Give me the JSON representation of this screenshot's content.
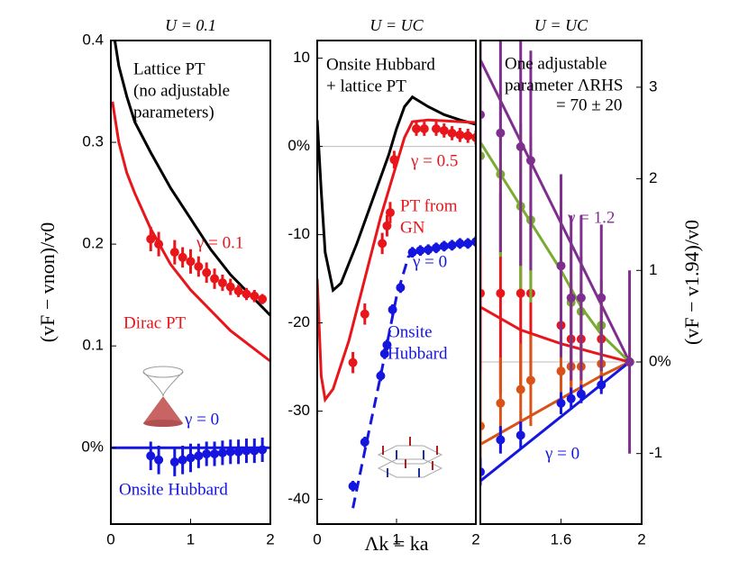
{
  "figure": {
    "xlabel": "Λk = ka"
  },
  "chart_data": [
    {
      "type": "line",
      "title": "U = 0.1",
      "ylabel": "(vF − vnon)/v0",
      "yaxis_side": "left",
      "zero_line": false,
      "xlim": [
        0,
        2
      ],
      "xticks": [
        0,
        1,
        2
      ],
      "ylim": [
        -0.075,
        0.4
      ],
      "yticks": [
        {
          "value": 0,
          "label": "0%"
        },
        0.1,
        0.2,
        0.3,
        0.4
      ],
      "series": [
        {
          "style": "line",
          "color": "#000000",
          "x": [
            0.05,
            0.1,
            0.2,
            0.3,
            0.5,
            0.75,
            1.0,
            1.25,
            1.5,
            1.75,
            2.0
          ],
          "values": [
            0.4,
            0.375,
            0.345,
            0.32,
            0.29,
            0.255,
            0.225,
            0.195,
            0.17,
            0.15,
            0.13
          ]
        },
        {
          "style": "line",
          "color": "#e8151b",
          "x": [
            0.02,
            0.1,
            0.2,
            0.3,
            0.5,
            0.75,
            1.0,
            1.25,
            1.5,
            1.75,
            2.0
          ],
          "values": [
            0.34,
            0.3,
            0.27,
            0.25,
            0.215,
            0.18,
            0.155,
            0.135,
            0.115,
            0.1,
            0.085
          ]
        },
        {
          "style": "line",
          "color": "#1515e0",
          "x": [
            0,
            2
          ],
          "values": [
            0,
            0
          ]
        },
        {
          "style": "points",
          "color": "#e8151b",
          "x": [
            0.5,
            0.6,
            0.8,
            0.9,
            1.0,
            1.1,
            1.2,
            1.3,
            1.4,
            1.5,
            1.6,
            1.7,
            1.8,
            1.9
          ],
          "values": [
            0.205,
            0.2,
            0.192,
            0.187,
            0.183,
            0.178,
            0.172,
            0.166,
            0.162,
            0.158,
            0.154,
            0.151,
            0.149,
            0.146
          ],
          "errors": [
            0.012,
            0.012,
            0.012,
            0.01,
            0.012,
            0.01,
            0.01,
            0.01,
            0.008,
            0.008,
            0.006,
            0.006,
            0.006,
            0.005
          ]
        },
        {
          "style": "points",
          "color": "#1515e0",
          "x": [
            0.5,
            0.6,
            0.8,
            0.9,
            1.0,
            1.1,
            1.2,
            1.3,
            1.4,
            1.5,
            1.6,
            1.7,
            1.8,
            1.9
          ],
          "values": [
            -0.008,
            -0.012,
            -0.014,
            -0.012,
            -0.01,
            -0.008,
            -0.006,
            -0.006,
            -0.005,
            -0.004,
            -0.004,
            -0.003,
            -0.003,
            -0.002
          ],
          "errors": [
            0.014,
            0.014,
            0.014,
            0.014,
            0.014,
            0.012,
            0.012,
            0.012,
            0.012,
            0.012,
            0.012,
            0.012,
            0.012,
            0.012
          ]
        }
      ],
      "annotations": [
        {
          "text": "Lattice PT",
          "color": "#000000"
        },
        {
          "text": "(no adjustable",
          "color": "#000000"
        },
        {
          "text": "parameters)",
          "color": "#000000"
        },
        {
          "text": "γ = 0.1",
          "color": "#e8151b"
        },
        {
          "text": "Dirac PT",
          "color": "#e8151b"
        },
        {
          "text": "γ = 0",
          "color": "#1515e0"
        },
        {
          "text": "Onsite Hubbard",
          "color": "#1515e0"
        }
      ]
    },
    {
      "type": "line",
      "title": "U = UC",
      "yaxis_side": "left",
      "zero_line": true,
      "xlim": [
        0,
        2
      ],
      "xticks": [
        0,
        1,
        2
      ],
      "ylim": [
        -42.8,
        12
      ],
      "yticks": [
        -40,
        -30,
        -20,
        -10,
        {
          "value": 0,
          "label": "0%"
        },
        10
      ],
      "series": [
        {
          "style": "line",
          "color": "#000000",
          "x": [
            0.0,
            0.05,
            0.1,
            0.2,
            0.3,
            0.5,
            0.7,
            0.9,
            1.0,
            1.1,
            1.2,
            1.4,
            1.6,
            1.8,
            2.0
          ],
          "values": [
            3,
            -5,
            -12,
            -16.3,
            -15.5,
            -11,
            -6,
            -1,
            2,
            4.5,
            5.6,
            4.5,
            3.6,
            3,
            2.5
          ]
        },
        {
          "style": "line",
          "color": "#e8151b",
          "x": [
            0.0,
            0.05,
            0.1,
            0.2,
            0.4,
            0.6,
            0.8,
            1.0,
            1.1,
            1.2,
            1.4,
            1.6,
            2.0
          ],
          "values": [
            -15,
            -26,
            -28.7,
            -27.5,
            -22,
            -15,
            -8,
            -2,
            1,
            2.8,
            3,
            2.9,
            2.7
          ]
        },
        {
          "style": "dashed",
          "color": "#1515e0",
          "x": [
            0.45,
            0.6,
            0.8,
            1.0,
            1.15,
            1.3,
            2.0
          ],
          "values": [
            -41,
            -34.5,
            -26,
            -17,
            -12.5,
            -11.8,
            -11
          ]
        },
        {
          "style": "points",
          "color": "#e8151b",
          "x": [
            0.45,
            0.6,
            0.82,
            0.88,
            0.92,
            0.97,
            1.25,
            1.35,
            1.5,
            1.6,
            1.7,
            1.8,
            1.9,
            2.0
          ],
          "values": [
            -24.5,
            -19,
            -11,
            -9,
            -7.5,
            -1.5,
            2,
            2,
            2,
            1.8,
            1.5,
            1.3,
            1.2,
            1
          ],
          "errors": [
            1.2,
            1.2,
            1.2,
            1.2,
            1.2,
            1,
            0.8,
            0.8,
            0.8,
            0.8,
            0.8,
            0.8,
            0.8,
            0.8
          ]
        },
        {
          "style": "points",
          "color": "#1515e0",
          "x": [
            0.45,
            0.6,
            0.8,
            0.85,
            0.88,
            0.95,
            1.05,
            1.2,
            1.3,
            1.4,
            1.5,
            1.6,
            1.7,
            1.8,
            1.9,
            2.0
          ],
          "values": [
            -38.5,
            -33.5,
            -26,
            -23.5,
            -22.5,
            -18.5,
            -16,
            -12,
            -11.8,
            -11.7,
            -11.5,
            -11.3,
            -11.2,
            -11,
            -11,
            -10.8
          ],
          "errors": [
            0.6,
            0.6,
            0.6,
            0.6,
            0.6,
            0.6,
            0.6,
            0.6,
            0.6,
            0.6,
            0.6,
            0.6,
            0.6,
            0.6,
            0.6,
            0.6
          ]
        }
      ],
      "annotations": [
        {
          "text": "Onsite Hubbard",
          "color": "#000000"
        },
        {
          "text": "+ lattice PT",
          "color": "#000000"
        },
        {
          "text": "γ = 0.5",
          "color": "#e8151b"
        },
        {
          "text": "PT from",
          "color": "#e8151b"
        },
        {
          "text": "GN",
          "color": "#e8151b"
        },
        {
          "text": "γ = 0",
          "color": "#1515e0"
        },
        {
          "text": "Onsite",
          "color": "#1515e0"
        },
        {
          "text": "Hubbard",
          "color": "#1515e0"
        }
      ]
    },
    {
      "type": "line",
      "title": "U = UC",
      "ylabel": "(vF − v1.94)/v0",
      "yaxis_side": "right",
      "zero_line": true,
      "xlim": [
        1.2,
        2.0
      ],
      "xticks": [
        1.6,
        2
      ],
      "ylim": [
        -1.77,
        3.51
      ],
      "yticks": [
        -1,
        {
          "value": 0,
          "label": "0%"
        },
        1,
        2,
        3
      ],
      "series": [
        {
          "style": "line",
          "color": "#7e2f8e",
          "x": [
            1.2,
            1.94
          ],
          "values": [
            3.3,
            0
          ]
        },
        {
          "style": "line",
          "color": "#77ac30",
          "x": [
            1.2,
            1.3,
            1.4,
            1.5,
            1.6,
            1.7,
            1.8,
            1.94
          ],
          "values": [
            2.4,
            2.05,
            1.7,
            1.35,
            1.0,
            0.6,
            0.3,
            0
          ]
        },
        {
          "style": "line",
          "color": "#e8151b",
          "x": [
            1.2,
            1.4,
            1.6,
            1.8,
            1.94
          ],
          "values": [
            0.6,
            0.35,
            0.2,
            0.08,
            0
          ]
        },
        {
          "style": "line",
          "color": "#d95319",
          "x": [
            1.2,
            1.4,
            1.6,
            1.8,
            1.94
          ],
          "values": [
            -0.9,
            -0.65,
            -0.4,
            -0.15,
            0
          ]
        },
        {
          "style": "line",
          "color": "#1515e0",
          "x": [
            1.2,
            1.94
          ],
          "values": [
            -1.3,
            0
          ]
        },
        {
          "style": "points",
          "color": "#e8151b",
          "x": [
            1.2,
            1.3,
            1.4,
            1.45,
            1.6,
            1.65,
            1.7,
            1.8,
            1.94
          ],
          "values": [
            0.75,
            0.75,
            0.75,
            0.75,
            0.4,
            0.25,
            0.25,
            0.25,
            0
          ],
          "errors": [
            1.2,
            1.1,
            1.0,
            1.0,
            0.7,
            0.6,
            0.6,
            0.5,
            0
          ]
        },
        {
          "style": "points",
          "color": "#d95319",
          "x": [
            1.2,
            1.3,
            1.4,
            1.45,
            1.6,
            1.65,
            1.7,
            1.8,
            1.94
          ],
          "values": [
            -0.7,
            -0.45,
            -0.3,
            -0.2,
            -0.1,
            -0.05,
            -0.05,
            -0.02,
            0
          ],
          "errors": [
            0.6,
            0.5,
            0.5,
            0.5,
            0.4,
            0.3,
            0.3,
            0.3,
            0
          ]
        },
        {
          "style": "points",
          "color": "#77ac30",
          "x": [
            1.2,
            1.3,
            1.4,
            1.45,
            1.6,
            1.65,
            1.7,
            1.8,
            1.94
          ],
          "values": [
            2.25,
            2.05,
            1.7,
            1.55,
            1.05,
            0.65,
            0.55,
            0.4,
            0
          ],
          "errors": [
            1.0,
            0.9,
            0.9,
            0.9,
            0.7,
            0.6,
            0.6,
            0.5,
            0
          ]
        },
        {
          "style": "points",
          "color": "#1515e0",
          "x": [
            1.2,
            1.3,
            1.4,
            1.6,
            1.65,
            1.7,
            1.8,
            1.94
          ],
          "values": [
            -1.2,
            -0.85,
            -0.8,
            -0.45,
            -0.4,
            -0.35,
            -0.25,
            0
          ],
          "errors": [
            0.15,
            0.15,
            0.15,
            0.12,
            0.12,
            0.1,
            0.1,
            0
          ]
        },
        {
          "style": "points",
          "color": "#7e2f8e",
          "x": [
            1.2,
            1.3,
            1.4,
            1.45,
            1.6,
            1.65,
            1.7,
            1.8,
            1.94
          ],
          "values": [
            2.7,
            2.5,
            2.35,
            2.2,
            1.05,
            0.7,
            0.7,
            0.7,
            0
          ],
          "errors": [
            1.5,
            1.3,
            1.3,
            1.2,
            1.0,
            0.9,
            0.9,
            0.8,
            1.0
          ]
        }
      ],
      "annotations": [
        {
          "text": "One adjustable",
          "color": "#000000"
        },
        {
          "text": "parameter ΛRHS",
          "color": "#000000"
        },
        {
          "text": "= 70 ± 20",
          "color": "#000000"
        },
        {
          "text": "γ = 1.2",
          "color": "#7e2f8e"
        },
        {
          "text": "γ = 0",
          "color": "#1515e0"
        }
      ]
    }
  ]
}
